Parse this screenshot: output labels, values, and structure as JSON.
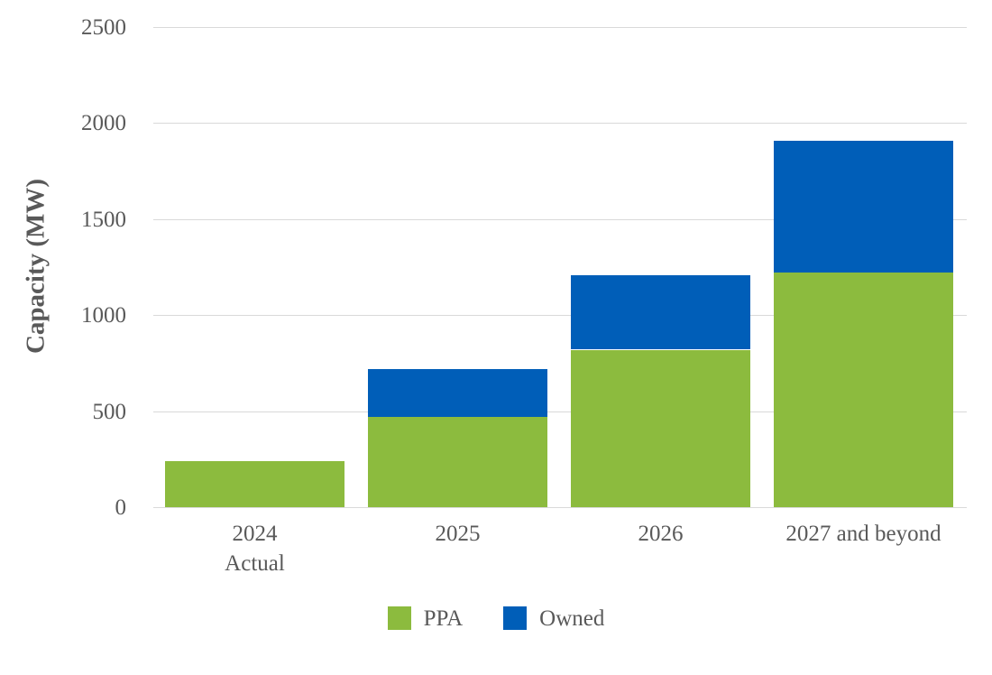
{
  "chart_data": {
    "type": "bar",
    "stacked": true,
    "title": "",
    "xlabel": "",
    "ylabel": "Capacity (MW)",
    "categories": [
      [
        "2024",
        "Actual"
      ],
      [
        "2025"
      ],
      [
        "2026"
      ],
      [
        "2027 and beyond"
      ]
    ],
    "series": [
      {
        "name": "PPA",
        "color": "#8CBB3E",
        "values": [
          240,
          470,
          820,
          1220
        ]
      },
      {
        "name": "Owned",
        "color": "#005EB8",
        "values": [
          0,
          250,
          390,
          690
        ]
      }
    ],
    "ylim": [
      0,
      2500
    ],
    "yticks": [
      0,
      500,
      1000,
      1500,
      2000,
      2500
    ],
    "grid": "horizontal",
    "legend_position": "bottom",
    "legend_entries": [
      "PPA",
      "Owned"
    ],
    "colors": {
      "ppa": "#8CBB3E",
      "owned": "#005EB8",
      "text": "#595959",
      "gridline": "#D9D9D9",
      "background": "#FFFFFF"
    }
  }
}
